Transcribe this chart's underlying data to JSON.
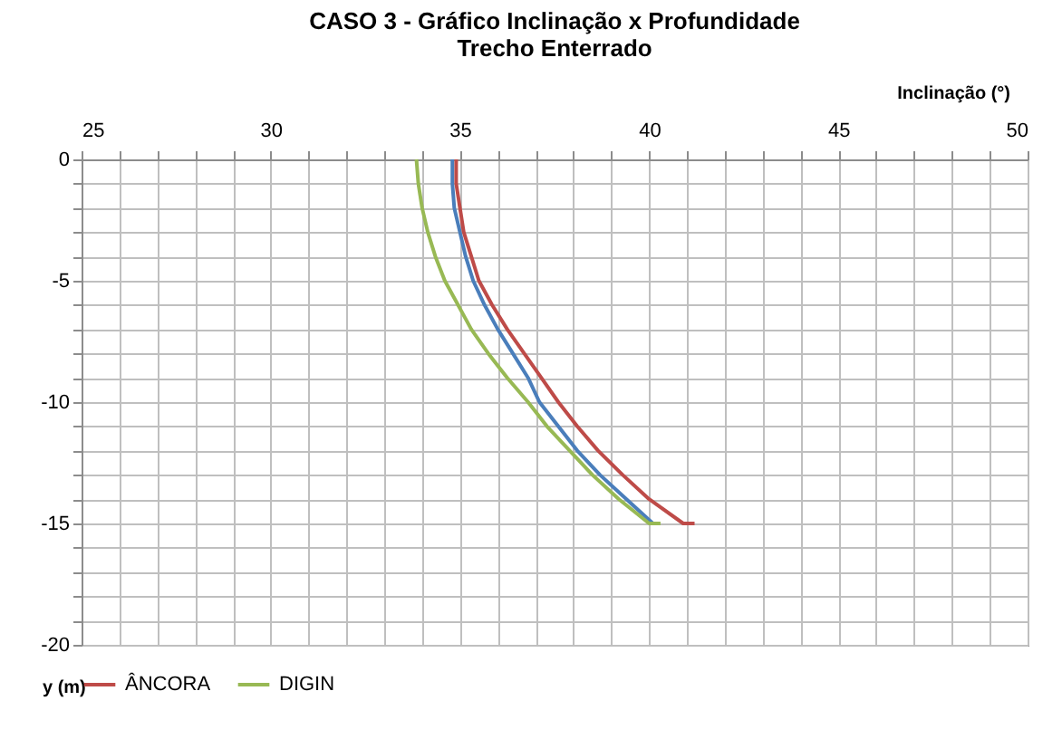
{
  "chart_data": {
    "type": "line",
    "title": "CASO 3 - Gráfico Inclinação x Profundidade",
    "subtitle": "Trecho Enterrado",
    "xlabel": "Inclinação (°)",
    "ylabel": "y (m)",
    "xlim": [
      25,
      50
    ],
    "xticks": [
      25,
      {
        "value": 26,
        "label": null
      },
      {
        "value": 27,
        "label": null
      },
      {
        "value": 28,
        "label": null
      },
      {
        "value": 29,
        "label": null
      },
      30,
      {
        "value": 31,
        "label": null
      },
      {
        "value": 32,
        "label": null
      },
      {
        "value": 33,
        "label": null
      },
      {
        "value": 34,
        "label": null
      },
      35,
      {
        "value": 36,
        "label": null
      },
      {
        "value": 37,
        "label": null
      },
      {
        "value": 38,
        "label": null
      },
      {
        "value": 39,
        "label": null
      },
      40,
      {
        "value": 41,
        "label": null
      },
      {
        "value": 42,
        "label": null
      },
      {
        "value": 43,
        "label": null
      },
      {
        "value": 44,
        "label": null
      },
      45,
      {
        "value": 46,
        "label": null
      },
      {
        "value": 47,
        "label": null
      },
      {
        "value": 48,
        "label": null
      },
      {
        "value": 49,
        "label": null
      },
      50
    ],
    "ylim": [
      -20,
      0
    ],
    "yticks": [
      -20,
      {
        "value": -19,
        "label": null
      },
      {
        "value": -18,
        "label": null
      },
      {
        "value": -17,
        "label": null
      },
      {
        "value": -16,
        "label": null
      },
      -15,
      {
        "value": -14,
        "label": null
      },
      {
        "value": -13,
        "label": null
      },
      {
        "value": -12,
        "label": null
      },
      {
        "value": -11,
        "label": null
      },
      -10,
      {
        "value": -9,
        "label": null
      },
      {
        "value": -8,
        "label": null
      },
      {
        "value": -7,
        "label": null
      },
      {
        "value": -6,
        "label": null
      },
      -5,
      {
        "value": -4,
        "label": null
      },
      {
        "value": -3,
        "label": null
      },
      {
        "value": -2,
        "label": null
      },
      {
        "value": -1,
        "label": null
      },
      0
    ],
    "grid": true,
    "legend": "bottom",
    "line_style": "solid",
    "series": [
      {
        "color": "#4a7ebb",
        "x": [
          34.8,
          34.8,
          34.85,
          35.0,
          35.15,
          35.35,
          35.65,
          36.0,
          36.4,
          36.8,
          37.1,
          37.6,
          38.1,
          38.7,
          39.4,
          40.1
        ],
        "values": [
          0,
          -1,
          -2,
          -3,
          -4,
          -5,
          -6,
          -7,
          -8,
          -9,
          -10,
          -11,
          -12,
          -13,
          -14,
          -15
        ]
      },
      {
        "name": "ÂNCORA",
        "color": "#be4b48",
        "x": [
          34.9,
          34.9,
          35.0,
          35.1,
          35.3,
          35.5,
          35.85,
          36.25,
          36.7,
          37.15,
          37.6,
          38.1,
          38.65,
          39.3,
          40.0,
          40.9,
          41.2
        ],
        "values": [
          0,
          -1,
          -2,
          -3,
          -4,
          -5,
          -6,
          -7,
          -8,
          -9,
          -10,
          -11,
          -12,
          -13,
          -14,
          -15,
          -15
        ]
      },
      {
        "name": "DIGIN",
        "color": "#98b954",
        "x": [
          33.85,
          33.9,
          34.0,
          34.15,
          34.35,
          34.6,
          34.95,
          35.3,
          35.75,
          36.25,
          36.8,
          37.3,
          37.9,
          38.5,
          39.2,
          40.0,
          40.3
        ],
        "values": [
          0,
          -1,
          -2,
          -3,
          -4,
          -5,
          -6,
          -7,
          -8,
          -9,
          -10,
          -11,
          -12,
          -13,
          -14,
          -15,
          -15
        ]
      }
    ]
  }
}
